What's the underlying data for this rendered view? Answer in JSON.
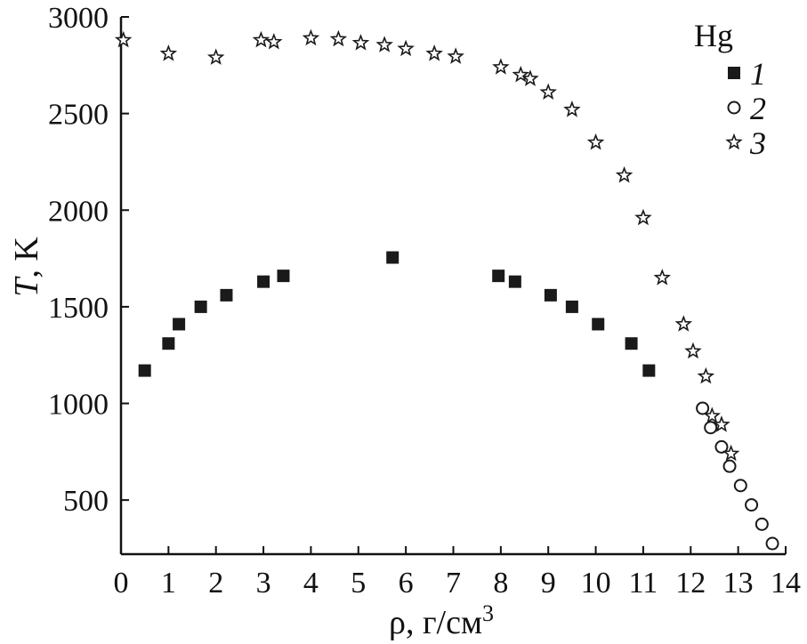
{
  "chart_data": {
    "type": "scatter",
    "xlabel": "ρ, г/см",
    "xlabel_superscript": "3",
    "ylabel_italic": "T",
    "ylabel_rest": ", K",
    "xlim": [
      0,
      14
    ],
    "ylim": [
      220,
      3000
    ],
    "xticks": [
      0,
      1,
      2,
      3,
      4,
      5,
      6,
      7,
      8,
      9,
      10,
      11,
      12,
      13,
      14
    ],
    "yticks": [
      500,
      1000,
      1500,
      2000,
      2500,
      3000
    ],
    "grid": false,
    "legend_title": "Hg",
    "legend_position": "top-right",
    "series": [
      {
        "name": "1",
        "marker": "filled-square",
        "color": "#1a1a1a",
        "x": [
          0.5,
          1.0,
          1.22,
          1.68,
          2.22,
          3.0,
          3.42,
          5.72,
          7.95,
          8.3,
          9.05,
          9.5,
          10.05,
          10.75,
          11.12
        ],
        "y": [
          1170,
          1310,
          1410,
          1500,
          1560,
          1630,
          1660,
          1755,
          1660,
          1630,
          1560,
          1500,
          1410,
          1310,
          1170
        ]
      },
      {
        "name": "2",
        "marker": "open-circle",
        "color": "#1a1a1a",
        "x": [
          12.25,
          12.42,
          12.65,
          12.82,
          13.05,
          13.28,
          13.5,
          13.72
        ],
        "y": [
          975,
          875,
          775,
          675,
          575,
          475,
          375,
          275
        ]
      },
      {
        "name": "3",
        "marker": "open-star",
        "color": "#1a1a1a",
        "x": [
          0.05,
          1.0,
          2.0,
          2.95,
          3.22,
          4.0,
          4.58,
          5.05,
          5.55,
          6.0,
          6.6,
          7.05,
          8.0,
          8.42,
          8.62,
          9.0,
          9.5,
          10.0,
          10.6,
          11.0,
          11.4,
          11.85,
          12.05,
          12.32,
          12.45,
          12.65,
          12.85
        ],
        "y": [
          2880,
          2810,
          2790,
          2880,
          2870,
          2890,
          2885,
          2865,
          2855,
          2835,
          2810,
          2795,
          2740,
          2700,
          2680,
          2610,
          2520,
          2350,
          2180,
          1960,
          1650,
          1410,
          1270,
          1140,
          935,
          890,
          740
        ]
      }
    ]
  }
}
